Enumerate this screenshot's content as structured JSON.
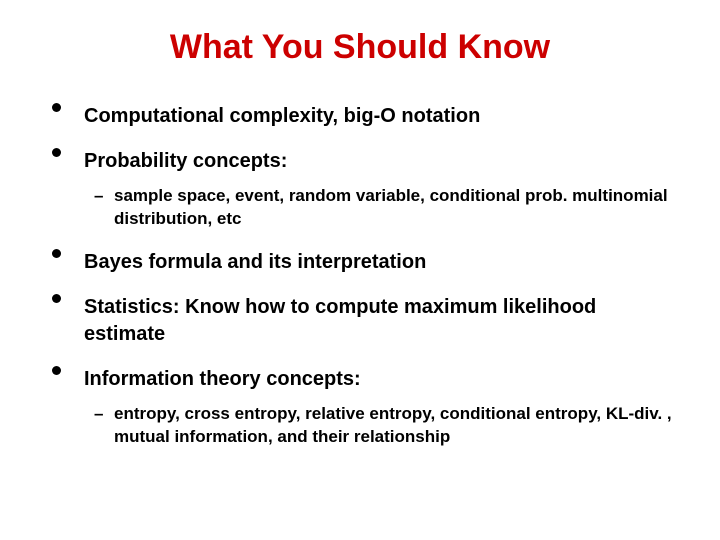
{
  "slide": {
    "title": "What You Should Know",
    "title_color": "#cc0000",
    "title_fontsize": 34,
    "body_fontsize": 20,
    "sub_fontsize": 17,
    "text_color": "#000000",
    "background": "#ffffff",
    "bullets": [
      {
        "text": "Computational complexity, big-O notation",
        "subs": []
      },
      {
        "text": "Probability concepts:",
        "subs": [
          "sample space, event, random variable, conditional prob. multinomial distribution, etc"
        ]
      },
      {
        "text": "Bayes formula and its interpretation",
        "subs": []
      },
      {
        "text": "Statistics: Know how to compute maximum likelihood estimate",
        "subs": []
      },
      {
        "text": "Information theory concepts:",
        "subs": [
          "entropy, cross entropy, relative entropy, conditional entropy, KL-div. , mutual information, and their relationship"
        ]
      }
    ]
  }
}
